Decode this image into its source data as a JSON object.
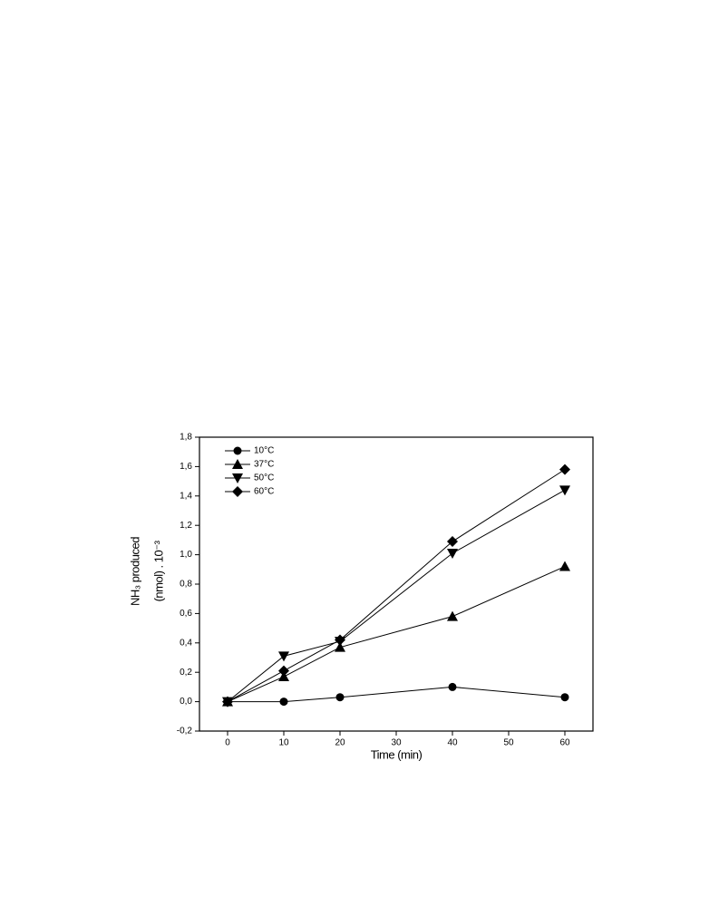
{
  "chart_data": {
    "type": "line",
    "xlabel": "Time (min)",
    "ylabel": [
      "NH₃ produced",
      "(nmol) . 10⁻³"
    ],
    "x": [
      0,
      10,
      20,
      40,
      60
    ],
    "series": [
      {
        "name": "10°C",
        "color": "#000000",
        "marker": "circle",
        "values": [
          0,
          0,
          0.03,
          0.1,
          0.03
        ]
      },
      {
        "name": "37°C",
        "color": "#000000",
        "marker": "triangle-up",
        "values": [
          0,
          0.17,
          0.37,
          0.58,
          0.92
        ]
      },
      {
        "name": "50°C",
        "color": "#000000",
        "marker": "triangle-down",
        "values": [
          0,
          0.31,
          0.41,
          1.01,
          1.44
        ]
      },
      {
        "name": "60°C",
        "color": "#000000",
        "marker": "diamond",
        "values": [
          0,
          0.21,
          0.42,
          1.09,
          1.58
        ]
      }
    ],
    "xlim": [
      -5,
      65
    ],
    "xticks": [
      0,
      10,
      20,
      30,
      40,
      50,
      60
    ],
    "ylim": [
      -0.2,
      1.8
    ],
    "yticks": [
      {
        "value": -0.2,
        "label": "-0,2"
      },
      {
        "value": 0,
        "label": "0,0"
      },
      {
        "value": 0.2,
        "label": "0,2"
      },
      {
        "value": 0.4,
        "label": "0,4"
      },
      {
        "value": 0.6,
        "label": "0,6"
      },
      {
        "value": 0.8,
        "label": "0,8"
      },
      {
        "value": 1.0,
        "label": "1,0"
      },
      {
        "value": 1.2,
        "label": "1,2"
      },
      {
        "value": 1.4,
        "label": "1,4"
      },
      {
        "value": 1.6,
        "label": "1,6"
      },
      {
        "value": 1.8,
        "label": "1,8"
      }
    ],
    "grid": false,
    "legend": "upper left"
  }
}
